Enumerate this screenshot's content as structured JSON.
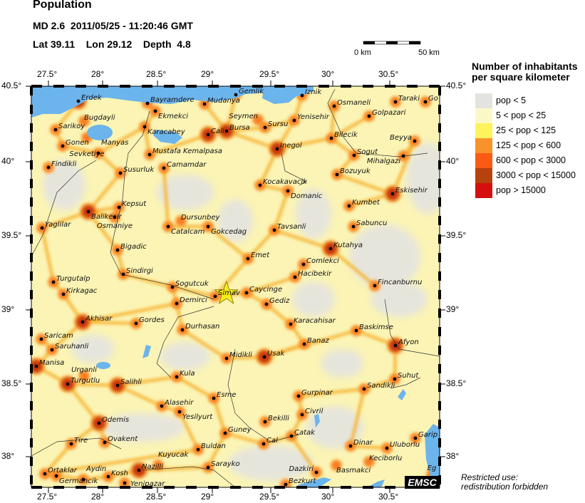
{
  "header": {
    "title": "Population",
    "event": "MD 2.6  2011/05/25 - 11:20:46 GMT",
    "location": "Lat 39.11    Lon 29.12    Depth  4.8"
  },
  "scale_bar": {
    "start": "0 km",
    "end": "50 km"
  },
  "axes": {
    "lon_labels": [
      "27.5°",
      "28°",
      "28.5°",
      "29°",
      "29.5°",
      "30°",
      "30.5°"
    ],
    "lat_labels": [
      "40.5°",
      "40°",
      "39.5°",
      "39°",
      "38.5°",
      "38°"
    ]
  },
  "epicenter": {
    "lat": 39.11,
    "lon": 29.12,
    "marker_color": "#f5ec1c"
  },
  "legend": {
    "title_line1": "Number of inhabitants",
    "title_line2": "per square kilometer",
    "items": [
      {
        "label": "pop < 5",
        "color": "#e3e3e0"
      },
      {
        "label": "5 < pop < 25",
        "color": "#fbf8c8"
      },
      {
        "label": "25 < pop < 125",
        "color": "#fdf35a"
      },
      {
        "label": "125 < pop < 600",
        "color": "#f8932c"
      },
      {
        "label": "600 < pop < 3000",
        "color": "#fb5a14"
      },
      {
        "label": "3000 < pop < 15000",
        "color": "#b8420d"
      },
      {
        "label": "pop > 15000",
        "color": "#d50e0e"
      }
    ]
  },
  "water_color": "#6cb4ec",
  "cities": [
    "Erdek",
    "Bayramdere",
    "Ekmekci",
    "Mudanya",
    "Gemlik",
    "Iznik",
    "Osmaneli",
    "Taraki",
    "Go",
    "Sarikoy",
    "Bugdayli",
    "Karacabey",
    "Cali",
    "Bursa",
    "Sursu",
    "Seymen",
    "Yenisehir",
    "Bilecik",
    "Golpazari",
    "Beyya",
    "Gonen",
    "Sevketiye",
    "Manyas",
    "Mustafa Kemalpasa",
    "Inegol",
    "Sogut",
    "Mihalgazi",
    "Findikli",
    "Camamdar",
    "Susurluk",
    "Bozuyuk",
    "Kocakavacik",
    "Domanic",
    "Eskisehir",
    "Kumbet",
    "Kepsut",
    "Balikesir",
    "Osmaniye",
    "Dursunbey",
    "Catalcam",
    "Gokcedag",
    "Sabuncu",
    "Yaglilar",
    "Tavsanli",
    "Bigadic",
    "Kutahya",
    "Emet",
    "Comlekci",
    "Sindirgi",
    "Hacibekir",
    "Turgutalp",
    "Fincanburnu",
    "Sogutcuk",
    "Caycinge",
    "Kirkagac",
    "Simav",
    "Demirci",
    "Gediz",
    "Akhisar",
    "Gordes",
    "Karacahisar",
    "Durhasan",
    "Baskimse",
    "Saricam",
    "Saruhanli",
    "Banaz",
    "Midikli",
    "Usak",
    "Afyon",
    "Manisa",
    "Kula",
    "Turgutlu",
    "Urganli",
    "Salihli",
    "Suhut",
    "Sandikli",
    "Esme",
    "Gurpinar",
    "Alasehir",
    "Yesilyurt",
    "Civril",
    "Bekilli",
    "Odemis",
    "Guney",
    "Catak",
    "Tire",
    "Ovakent",
    "Buldan",
    "Garip",
    "Cal",
    "Dinar",
    "Uluborlu",
    "Ortaklar",
    "Germancik",
    "Aydin",
    "Kosh",
    "Nazilli",
    "Kuyucak",
    "Sarayko",
    "Yenipazar",
    "Keciborlu",
    "Basmakci",
    "Dazkiri",
    "Bezkurt",
    "Eg"
  ],
  "logo": "EMSC",
  "notice": {
    "line1": "Restricted use:",
    "line2": "redistribution forbidden"
  }
}
